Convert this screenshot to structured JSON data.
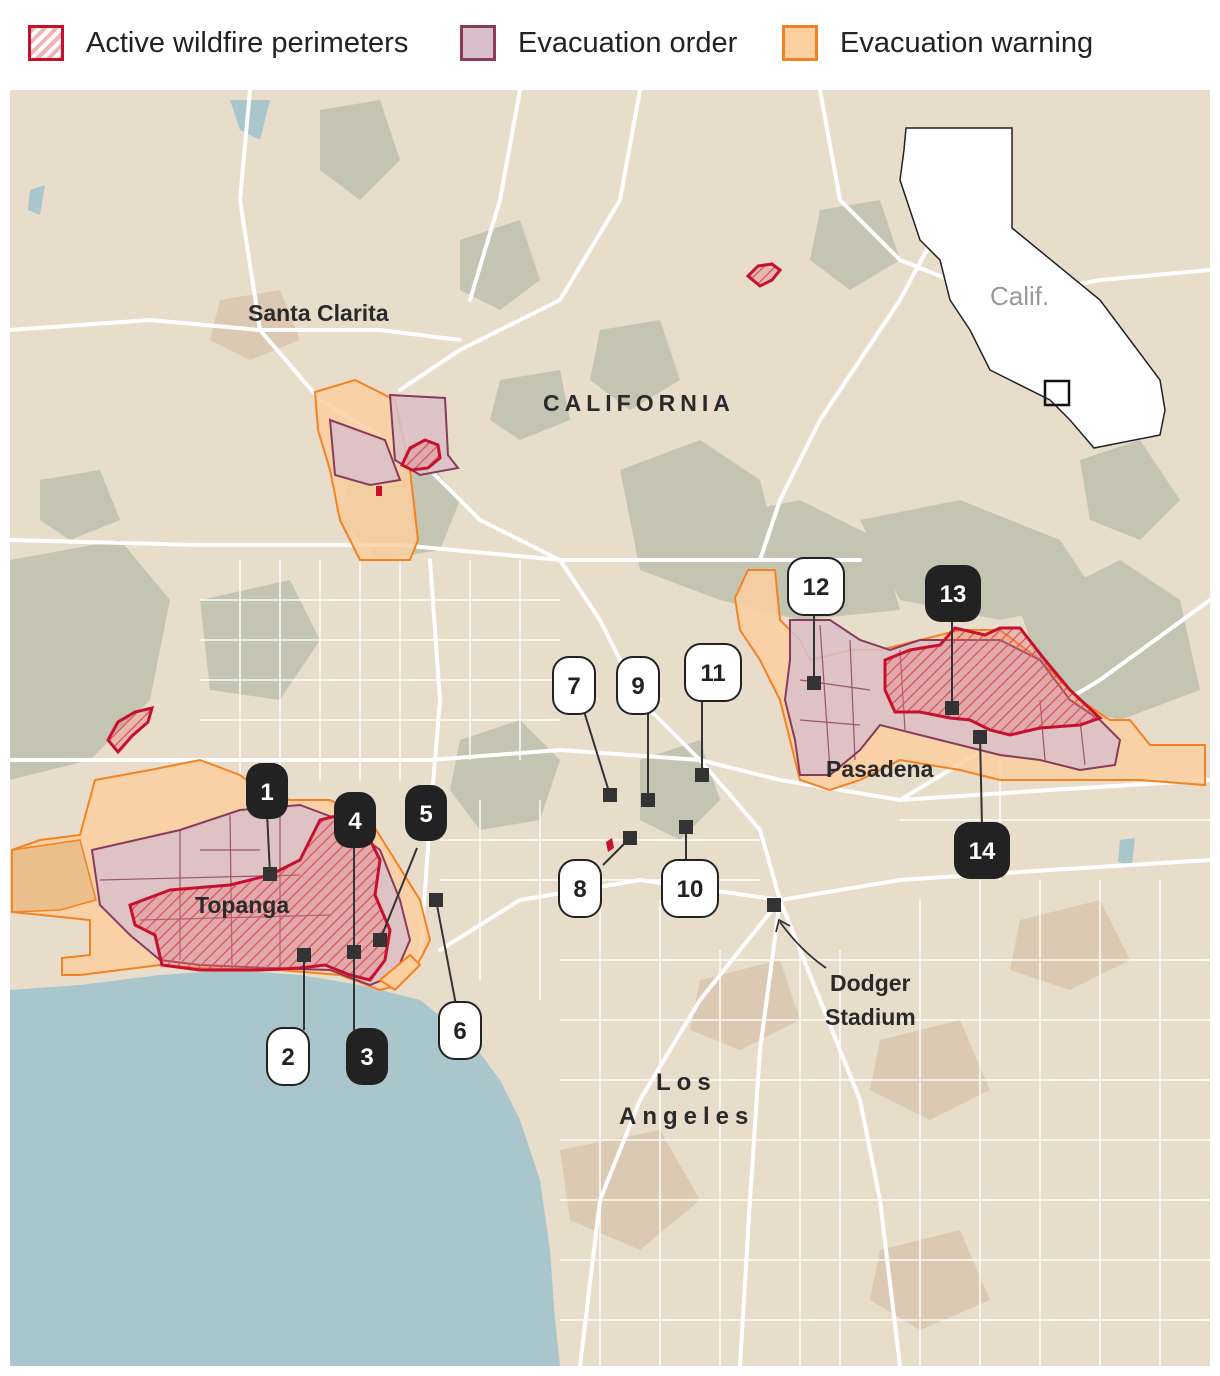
{
  "legend": {
    "fire_label": "Active wildfire perimeters",
    "order_label": "Evacuation order",
    "warning_label": "Evacuation warning"
  },
  "colors": {
    "fire": "#c8102e",
    "order": "#8b3a5c",
    "order_fill": "#d9bfc9",
    "warning": "#f58220",
    "warning_fill": "#fbcfa0",
    "land": "#e8dccb",
    "hills": "#c3c5b2",
    "urban": "#dcc9b3",
    "ocean": "#a9c6cc",
    "roads": "#ffffff"
  },
  "places": {
    "santa_clarita": "Santa Clarita",
    "california": "CALIFORNIA",
    "pasadena": "Pasadena",
    "topanga": "Topanga",
    "dodger_line1": "Dodger",
    "dodger_line2": "Stadium",
    "la_line1": "Los",
    "la_line2": "Angeles"
  },
  "inset": {
    "label": "Calif."
  },
  "markers": {
    "m1": "1",
    "m2": "2",
    "m3": "3",
    "m4": "4",
    "m5": "5",
    "m6": "6",
    "m7": "7",
    "m8": "8",
    "m9": "9",
    "m10": "10",
    "m11": "11",
    "m12": "12",
    "m13": "13",
    "m14": "14"
  }
}
